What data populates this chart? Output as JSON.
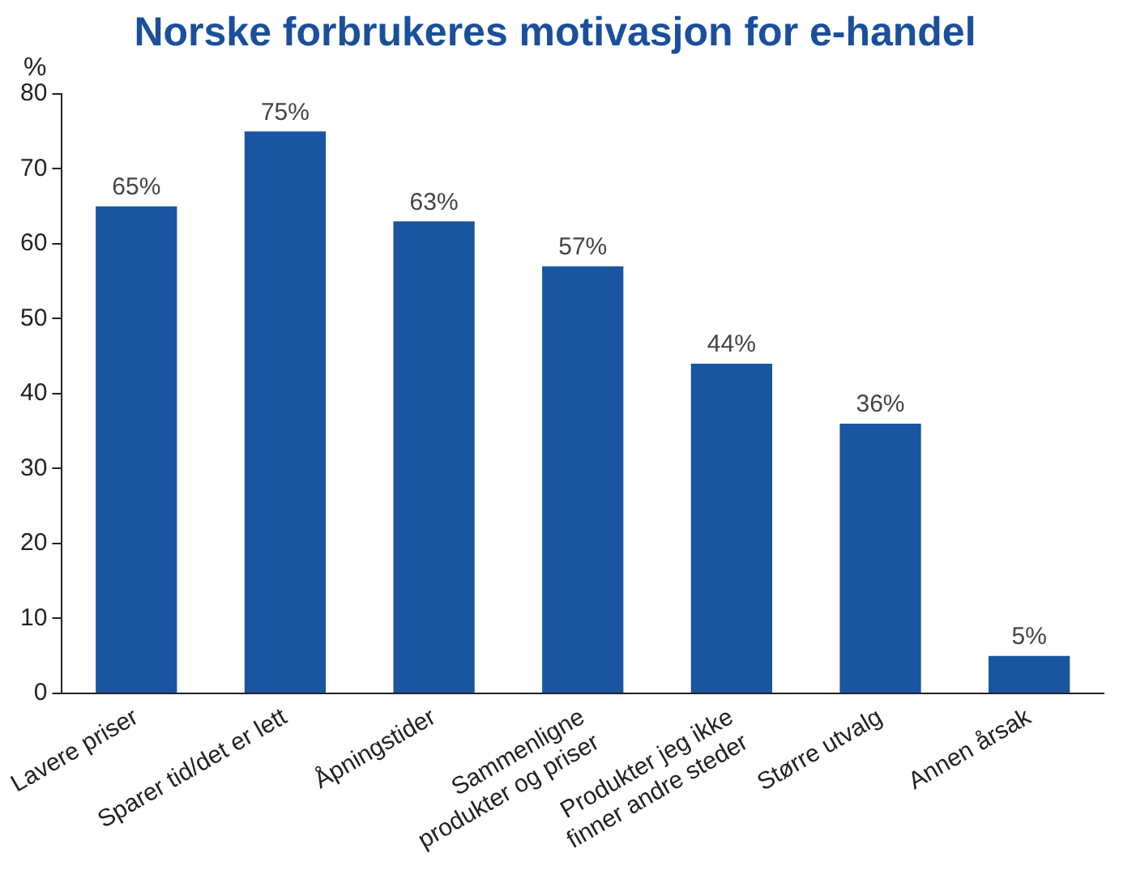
{
  "chart_data": {
    "type": "bar",
    "title": "Norske forbrukeres motivasjon for e-handel",
    "ylabel": "%",
    "categories": [
      "Lavere priser",
      "Sparer tid/det er lett",
      "Åpningstider",
      "Sammenligne produkter og priser",
      "Produkter jeg ikke finner andre steder",
      "Større utvalg",
      "Annen årsak"
    ],
    "values": [
      65,
      75,
      63,
      57,
      44,
      36,
      5
    ],
    "value_labels": [
      "65%",
      "75%",
      "63%",
      "57%",
      "44%",
      "36%",
      "5%"
    ],
    "color": "#1a55a0",
    "ylim": [
      0,
      80
    ],
    "yticks": [
      0,
      10,
      20,
      30,
      40,
      50,
      60,
      70,
      80
    ],
    "grid": false,
    "legend": false
  }
}
